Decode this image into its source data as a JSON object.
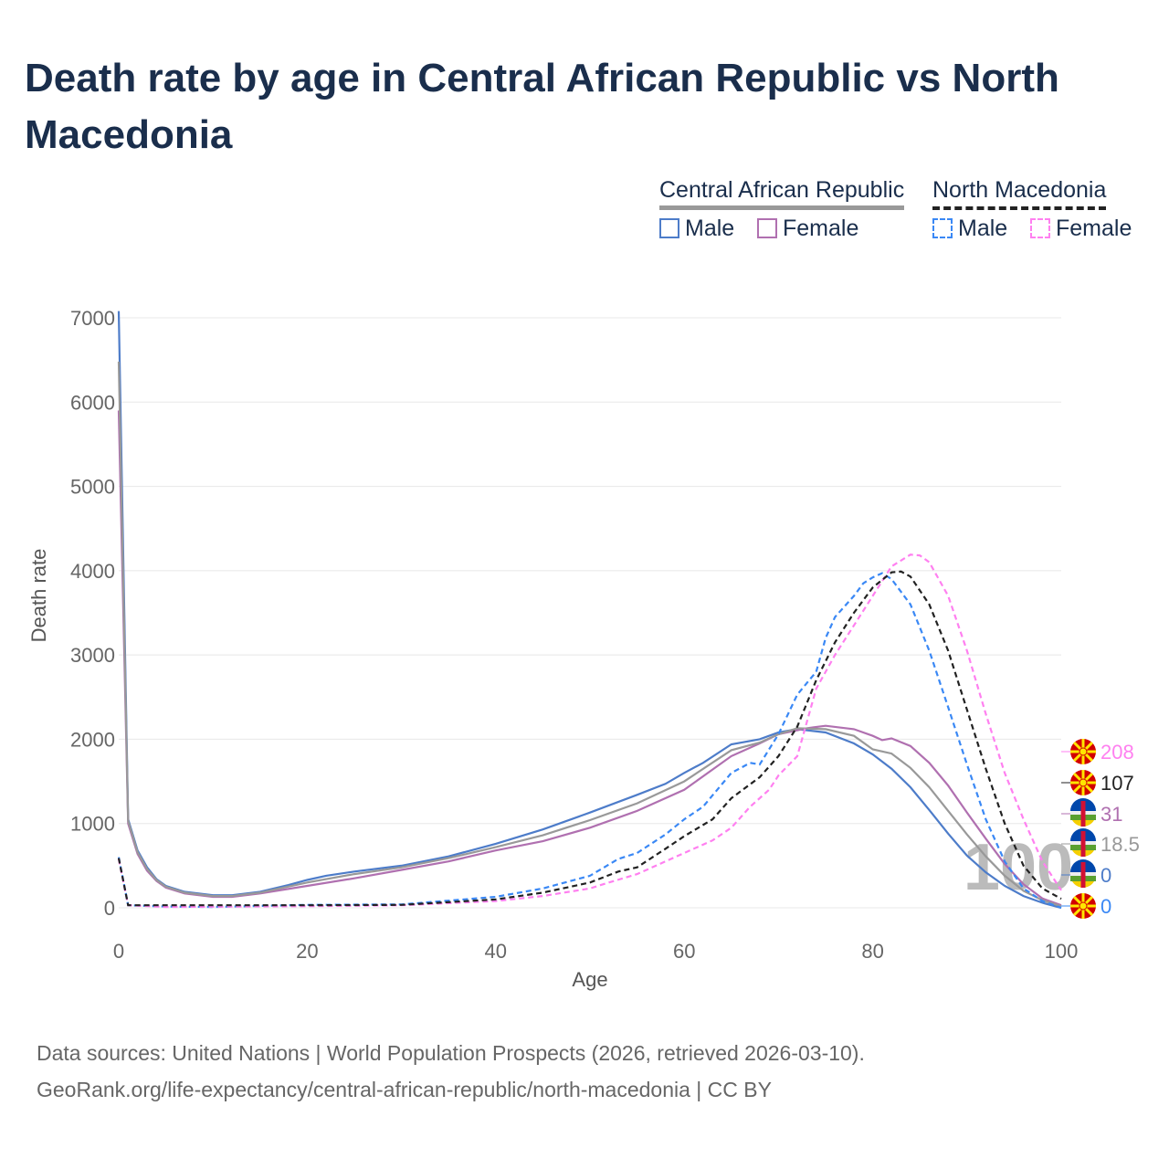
{
  "title": "Death rate by age in Central African Republic vs North Macedonia",
  "legend": {
    "car": "Central African Republic",
    "nm": "North Macedonia",
    "male": "Male",
    "female": "Female"
  },
  "source_line1": "Data sources: United Nations | World Population Prospects (2026, retrieved 2026-03-10).",
  "source_line2": "GeoRank.org/life-expectancy/central-african-republic/north-macedonia | CC BY",
  "watermark": "100",
  "colors": {
    "car_male": "#4d7cc9",
    "car_female": "#b070b0",
    "car_total": "#999999",
    "nm_male": "#3a88f5",
    "nm_female": "#ff80f0",
    "nm_total": "#222222"
  },
  "chart_data": {
    "type": "line",
    "title": "Death rate by age in Central African Republic vs North Macedonia",
    "xlabel": "Age",
    "ylabel": "Death rate",
    "xlim": [
      0,
      100
    ],
    "ylim": [
      0,
      7000
    ],
    "xticks": [
      "0",
      "20",
      "40",
      "60",
      "80",
      "100"
    ],
    "yticks": [
      "0",
      "1000",
      "2000",
      "3000",
      "4000",
      "5000",
      "6000",
      "7000"
    ],
    "series": [
      {
        "name": "Central African Republic Male",
        "key": "car_male",
        "dash": false,
        "end_label": "0",
        "x": [
          0,
          1,
          2,
          3,
          4,
          5,
          7,
          10,
          12,
          15,
          18,
          20,
          22,
          25,
          30,
          35,
          40,
          45,
          50,
          55,
          58,
          60,
          62,
          65,
          68,
          70,
          72,
          75,
          78,
          80,
          82,
          84,
          86,
          88,
          90,
          92,
          94,
          96,
          98,
          100
        ],
        "y": [
          7080,
          1050,
          680,
          480,
          340,
          260,
          190,
          150,
          150,
          190,
          270,
          330,
          380,
          430,
          500,
          610,
          760,
          930,
          1130,
          1340,
          1470,
          1600,
          1720,
          1940,
          2000,
          2080,
          2120,
          2080,
          1950,
          1820,
          1650,
          1430,
          1160,
          880,
          620,
          420,
          260,
          140,
          60,
          0
        ]
      },
      {
        "name": "Central African Republic Female",
        "key": "car_female",
        "dash": false,
        "end_label": "31",
        "x": [
          0,
          1,
          2,
          3,
          4,
          5,
          7,
          10,
          12,
          15,
          20,
          25,
          30,
          35,
          40,
          45,
          50,
          55,
          60,
          65,
          68,
          70,
          73,
          75,
          78,
          80,
          81,
          82,
          84,
          86,
          88,
          90,
          92,
          94,
          96,
          98,
          100
        ],
        "y": [
          5900,
          1000,
          640,
          440,
          320,
          240,
          170,
          130,
          130,
          170,
          260,
          350,
          450,
          550,
          680,
          790,
          950,
          1150,
          1400,
          1800,
          1950,
          2060,
          2130,
          2160,
          2120,
          2040,
          1990,
          2010,
          1920,
          1720,
          1450,
          1130,
          820,
          520,
          280,
          110,
          31
        ]
      },
      {
        "name": "Central African Republic Total",
        "key": "car_total",
        "dash": false,
        "end_label": "18.5",
        "x": [
          0,
          1,
          2,
          3,
          4,
          5,
          7,
          10,
          12,
          15,
          20,
          25,
          30,
          35,
          40,
          45,
          50,
          55,
          60,
          65,
          68,
          70,
          72,
          75,
          78,
          80,
          82,
          84,
          86,
          88,
          90,
          92,
          94,
          96,
          98,
          100
        ],
        "y": [
          6480,
          1030,
          660,
          460,
          330,
          250,
          180,
          140,
          140,
          180,
          300,
          400,
          480,
          590,
          720,
          860,
          1040,
          1240,
          1500,
          1870,
          1960,
          2060,
          2130,
          2120,
          2040,
          1880,
          1830,
          1660,
          1430,
          1150,
          870,
          610,
          380,
          200,
          90,
          18.5
        ]
      },
      {
        "name": "North Macedonia Male",
        "key": "nm_male",
        "dash": true,
        "end_label": "0",
        "x": [
          0,
          1,
          5,
          10,
          20,
          30,
          40,
          45,
          50,
          53,
          55,
          58,
          60,
          62,
          65,
          67,
          68,
          70,
          72,
          74,
          75,
          76,
          78,
          79,
          80,
          81,
          82,
          84,
          86,
          88,
          90,
          92,
          94,
          96,
          98,
          100
        ],
        "y": [
          600,
          30,
          15,
          10,
          35,
          40,
          130,
          230,
          380,
          580,
          650,
          870,
          1050,
          1200,
          1600,
          1720,
          1700,
          2060,
          2530,
          2800,
          3200,
          3450,
          3700,
          3850,
          3920,
          3970,
          3900,
          3600,
          3050,
          2380,
          1700,
          1050,
          550,
          230,
          80,
          0
        ]
      },
      {
        "name": "North Macedonia Female",
        "key": "nm_female",
        "dash": true,
        "end_label": "208",
        "x": [
          0,
          1,
          5,
          20,
          30,
          40,
          45,
          50,
          52,
          55,
          58,
          60,
          63,
          65,
          67,
          69,
          70,
          72,
          74,
          76,
          78,
          80,
          82,
          84,
          85,
          86,
          88,
          90,
          92,
          94,
          96,
          98,
          100
        ],
        "y": [
          580,
          30,
          10,
          20,
          30,
          80,
          140,
          230,
          300,
          400,
          550,
          650,
          800,
          950,
          1200,
          1400,
          1570,
          1800,
          2600,
          3000,
          3350,
          3700,
          4050,
          4190,
          4180,
          4100,
          3700,
          3050,
          2300,
          1600,
          1050,
          550,
          208
        ]
      },
      {
        "name": "North Macedonia Total",
        "key": "nm_total",
        "dash": true,
        "end_label": "107",
        "x": [
          0,
          1,
          20,
          30,
          40,
          45,
          50,
          53,
          55,
          58,
          60,
          63,
          65,
          68,
          70,
          72,
          74,
          76,
          78,
          80,
          82,
          83,
          84,
          86,
          88,
          90,
          92,
          94,
          96,
          98,
          100
        ],
        "y": [
          590,
          30,
          30,
          35,
          100,
          180,
          300,
          430,
          480,
          700,
          850,
          1050,
          1300,
          1550,
          1800,
          2150,
          2700,
          3150,
          3500,
          3800,
          3980,
          3990,
          3930,
          3600,
          3050,
          2350,
          1650,
          1000,
          500,
          230,
          107
        ]
      }
    ]
  }
}
